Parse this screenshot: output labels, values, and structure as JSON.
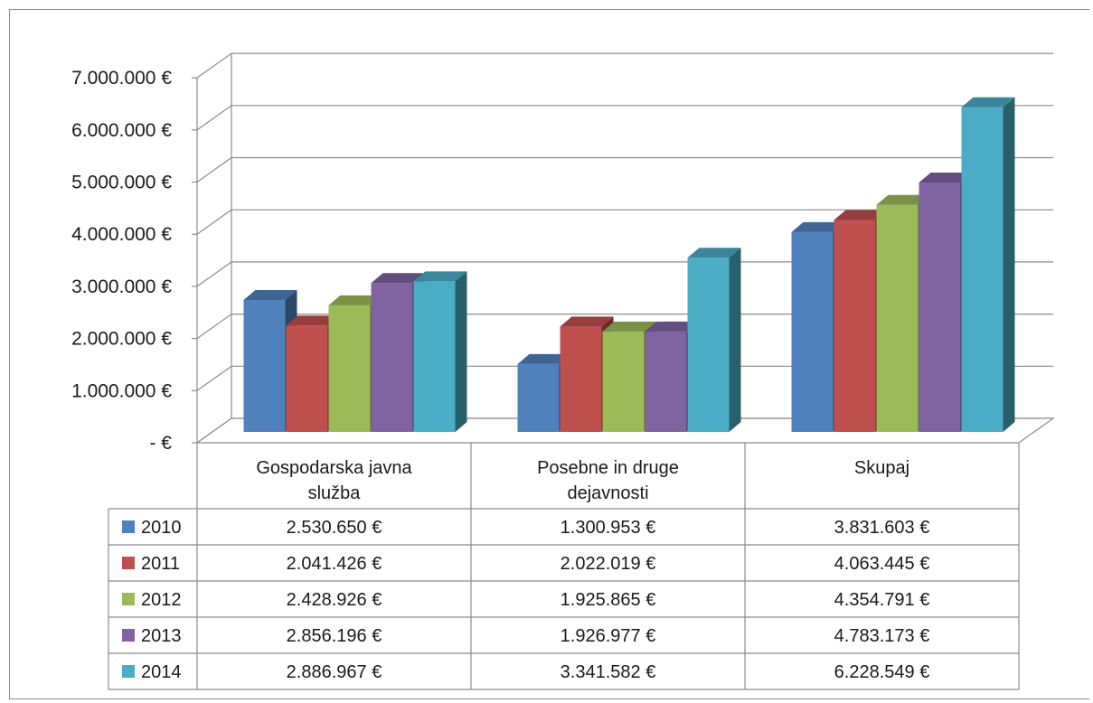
{
  "chart_data": {
    "type": "bar",
    "title": "",
    "xlabel": "",
    "ylabel": "",
    "ylim": [
      0,
      7000000
    ],
    "grid": true,
    "legend": "data-table-left",
    "categories": [
      [
        "Gospodarska javna",
        "služba"
      ],
      [
        "Posebne in druge",
        "dejavnosti"
      ],
      [
        "Skupaj"
      ]
    ],
    "y_ticks": [
      {
        "value": 0,
        "label": "- €"
      },
      {
        "value": 1000000,
        "label": "1.000.000 €"
      },
      {
        "value": 2000000,
        "label": "2.000.000 €"
      },
      {
        "value": 3000000,
        "label": "3.000.000 €"
      },
      {
        "value": 4000000,
        "label": "4.000.000 €"
      },
      {
        "value": 5000000,
        "label": "5.000.000 €"
      },
      {
        "value": 6000000,
        "label": "6.000.000 €"
      },
      {
        "value": 7000000,
        "label": "7.000.000 €"
      }
    ],
    "series": [
      {
        "name": "2010",
        "color": "#4f81bd",
        "values": [
          2530650,
          1300953,
          3831603
        ],
        "labels": [
          "2.530.650 €",
          "1.300.953 €",
          "3.831.603 €"
        ]
      },
      {
        "name": "2011",
        "color": "#c0504d",
        "values": [
          2041426,
          2022019,
          4063445
        ],
        "labels": [
          "2.041.426 €",
          "2.022.019 €",
          "4.063.445 €"
        ]
      },
      {
        "name": "2012",
        "color": "#9bbb59",
        "values": [
          2428926,
          1925865,
          4354791
        ],
        "labels": [
          "2.428.926 €",
          "1.925.865 €",
          "4.354.791 €"
        ]
      },
      {
        "name": "2013",
        "color": "#8064a2",
        "values": [
          2856196,
          1926977,
          4783173
        ],
        "labels": [
          "2.856.196 €",
          "1.926.977 €",
          "4.783.173 €"
        ]
      },
      {
        "name": "2014",
        "color": "#4bacc6",
        "values": [
          2886967,
          3341582,
          6228549
        ],
        "labels": [
          "2.886.967 €",
          "3.341.582 €",
          "6.228.549 €"
        ]
      }
    ]
  }
}
